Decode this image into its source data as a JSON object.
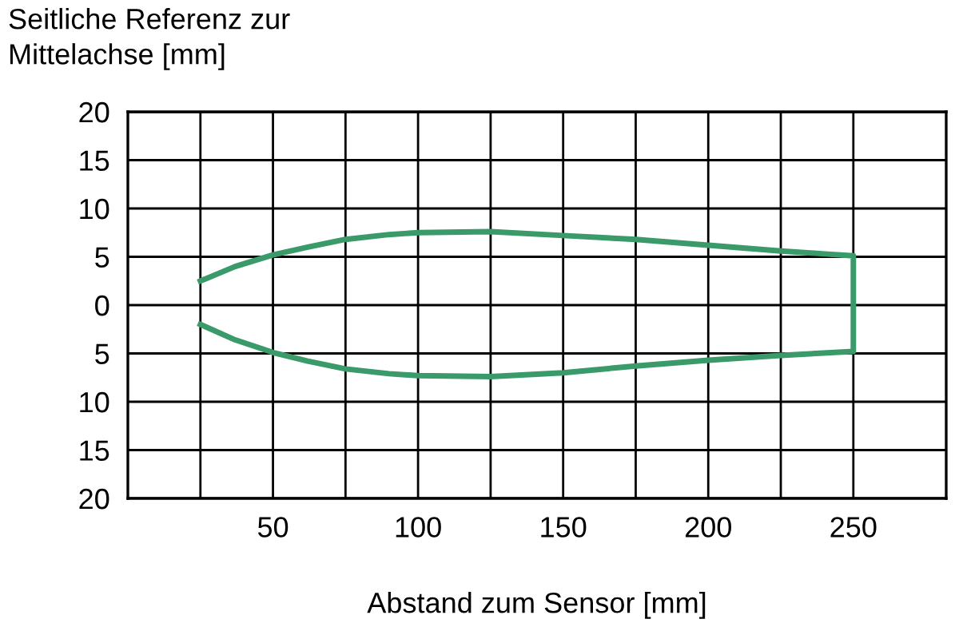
{
  "chart_data": {
    "type": "line",
    "ylabel": "Seitliche Referenz zur\nMittelachse [mm]",
    "xlabel": "Abstand zum Sensor [mm]",
    "series": [
      {
        "color": "#3a9a6a",
        "x": [
          25,
          37,
          50,
          62,
          75,
          90,
          100,
          125,
          150,
          175,
          200,
          225,
          240,
          250,
          250,
          225,
          200,
          175,
          150,
          125,
          100,
          90,
          75,
          62,
          50,
          37,
          25
        ],
        "values": [
          2.5,
          4,
          5.2,
          6,
          6.8,
          7.3,
          7.5,
          7.6,
          7.2,
          6.8,
          6.2,
          5.6,
          5.3,
          5.1,
          -4.8,
          -5.2,
          -5.7,
          -6.3,
          -7.0,
          -7.4,
          -7.3,
          -7.1,
          -6.6,
          -5.8,
          -4.9,
          -3.6,
          -2
        ]
      }
    ],
    "xlim": [
      0,
      282
    ],
    "xticks": [
      {
        "value": 25,
        "label": null
      },
      50,
      {
        "value": 75,
        "label": null
      },
      100,
      {
        "value": 125,
        "label": null
      },
      150,
      {
        "value": 175,
        "label": null
      },
      200,
      {
        "value": 225,
        "label": null
      },
      250
    ],
    "ylim": [
      -20,
      20
    ],
    "yticks": [
      {
        "value": -20,
        "label": "20"
      },
      {
        "value": -15,
        "label": "15"
      },
      {
        "value": -10,
        "label": "10"
      },
      {
        "value": -5,
        "label": "5"
      },
      0,
      5,
      10,
      15,
      20
    ],
    "grid": true,
    "marker": "none",
    "line_style": "solid"
  }
}
